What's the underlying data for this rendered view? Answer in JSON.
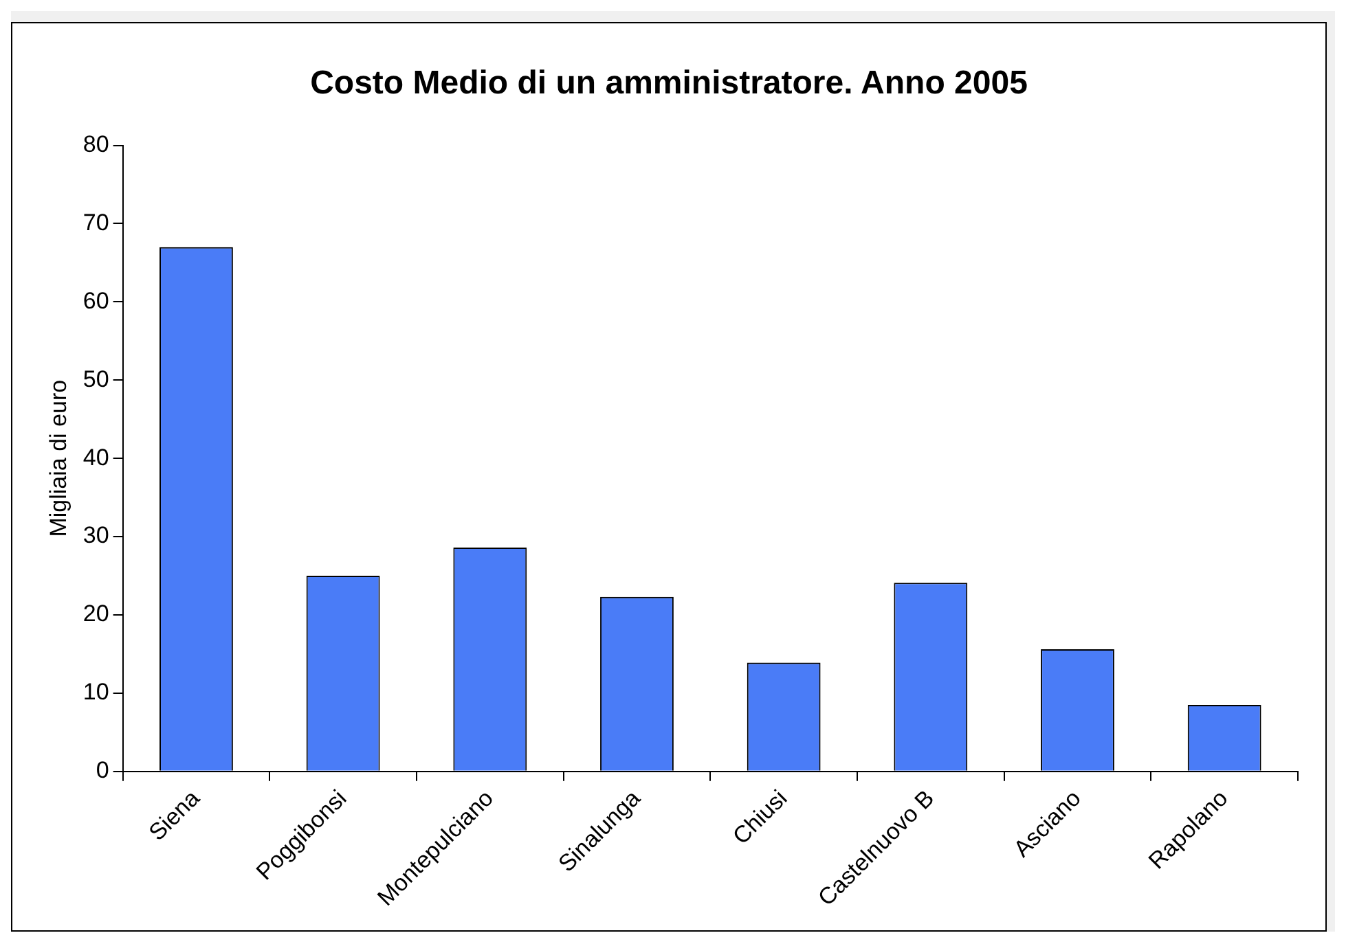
{
  "chart_data": {
    "type": "bar",
    "title": "Costo Medio di un amministratore. Anno 2005",
    "ylabel": "Migliaia di euro",
    "categories": [
      "Siena",
      "Poggibonsi",
      "Montepulciano",
      "Sinalunga",
      "Chiusi",
      "Castelnuovo B",
      "Asciano",
      "Rapolano"
    ],
    "values": [
      67,
      25,
      28.6,
      22.3,
      13.9,
      24.1,
      15.6,
      8.5
    ],
    "color": "#4a7cf7",
    "ylim": [
      0,
      80
    ],
    "yticks": [
      0,
      10,
      20,
      30,
      40,
      50,
      60,
      70,
      80
    ],
    "grid": false,
    "legend": false
  }
}
